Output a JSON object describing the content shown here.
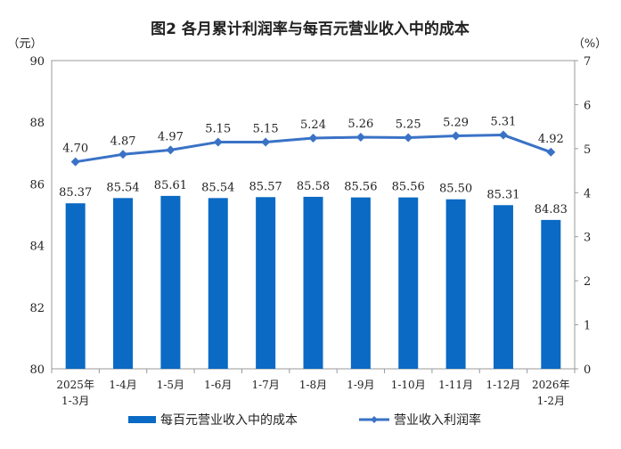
{
  "chart_data": {
    "type": "bar+line",
    "title": "图2 各月累计利润率与每百元营业收入中的成本",
    "left_unit": "（元）",
    "right_unit": "（%）",
    "categories": [
      [
        "2025年",
        "1-3月"
      ],
      [
        "1-4月"
      ],
      [
        "1-5月"
      ],
      [
        "1-6月"
      ],
      [
        "1-7月"
      ],
      [
        "1-8月"
      ],
      [
        "1-9月"
      ],
      [
        "1-10月"
      ],
      [
        "1-11月"
      ],
      [
        "1-12月"
      ],
      [
        "2026年",
        "1-2月"
      ]
    ],
    "left_ylim": [
      80,
      90
    ],
    "left_ticks": [
      80,
      82,
      84,
      86,
      88,
      90
    ],
    "right_ylim": [
      0,
      7
    ],
    "right_ticks": [
      0,
      1,
      2,
      3,
      4,
      5,
      6,
      7
    ],
    "grid": false,
    "legend_position": "bottom",
    "series": [
      {
        "name": "每百元营业收入中的成本",
        "type": "bar",
        "axis": "left",
        "color": "#0a6ac4",
        "values": [
          85.37,
          85.54,
          85.61,
          85.54,
          85.57,
          85.58,
          85.56,
          85.56,
          85.5,
          85.31,
          84.83
        ],
        "labels": [
          "85.37",
          "85.54",
          "85.61",
          "85.54",
          "85.57",
          "85.58",
          "85.56",
          "85.56",
          "85.50",
          "85.31",
          "84.83"
        ]
      },
      {
        "name": "营业收入利润率",
        "type": "line",
        "axis": "right",
        "color": "#3a72c6",
        "values": [
          4.7,
          4.87,
          4.97,
          5.15,
          5.15,
          5.24,
          5.26,
          5.25,
          5.29,
          5.31,
          4.92
        ],
        "labels": [
          "4.70",
          "4.87",
          "4.97",
          "5.15",
          "5.15",
          "5.24",
          "5.26",
          "5.25",
          "5.29",
          "5.31",
          "4.92"
        ]
      }
    ]
  }
}
